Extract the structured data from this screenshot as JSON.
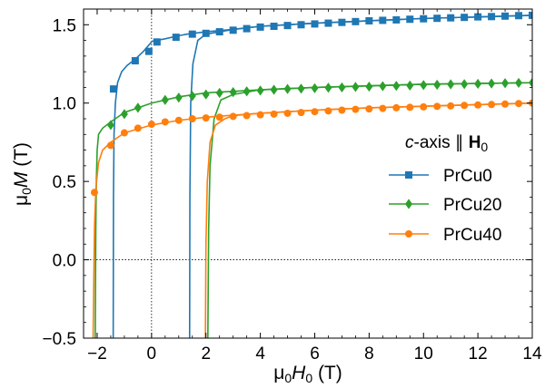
{
  "chart_data": {
    "type": "line",
    "xlabel_var": "H",
    "xlabel_sub": "0",
    "xlabel_unit": " (T)",
    "ylabel_var": "M",
    "ylabel_unit": "  (T)",
    "axis_prefix": "μ",
    "axis_prefix_sub": "0",
    "xlim": [
      -2.5,
      14
    ],
    "ylim": [
      -0.5,
      1.6
    ],
    "x_ticks": [
      -2,
      0,
      2,
      4,
      6,
      8,
      10,
      12,
      14
    ],
    "y_ticks": [
      -0.5,
      0.0,
      0.5,
      1.0,
      1.5
    ],
    "x_tick_labels": [
      "−2",
      "0",
      "2",
      "4",
      "6",
      "8",
      "10",
      "12",
      "14"
    ],
    "y_tick_labels": [
      "−0.5",
      "0.0",
      "0.5",
      "1.0",
      "1.5"
    ],
    "reference_lines": {
      "x": 0,
      "y": 0,
      "style": "dotted"
    },
    "grid": false,
    "legend_position": "right-middle",
    "legend": {
      "title_italic": "c",
      "title_text": "-axis  ∥ ",
      "title_bold": "H",
      "title_sub": "0"
    },
    "series": [
      {
        "name": "PrCu0",
        "color": "#1f77b4",
        "marker": "square",
        "descending": [
          [
            14,
            1.56
          ],
          [
            12,
            1.55
          ],
          [
            10,
            1.54
          ],
          [
            8,
            1.525
          ],
          [
            6,
            1.51
          ],
          [
            4,
            1.49
          ],
          [
            3,
            1.47
          ],
          [
            2,
            1.455
          ],
          [
            1.3,
            1.44
          ],
          [
            1,
            1.43
          ],
          [
            0.5,
            1.41
          ],
          [
            0.02,
            1.395
          ],
          [
            -0.1,
            1.37
          ],
          [
            -0.3,
            1.33
          ],
          [
            -0.6,
            1.28
          ],
          [
            -0.9,
            1.24
          ],
          [
            -1.1,
            1.2
          ],
          [
            -1.25,
            1.13
          ],
          [
            -1.33,
            1.0
          ],
          [
            -1.38,
            0.8
          ],
          [
            -1.4,
            0.4
          ],
          [
            -1.41,
            -0.5
          ]
        ],
        "ascending": [
          [
            1.4,
            -0.5
          ],
          [
            1.41,
            0.4
          ],
          [
            1.44,
            1.0
          ],
          [
            1.52,
            1.25
          ],
          [
            1.7,
            1.4
          ],
          [
            2,
            1.44
          ],
          [
            2.5,
            1.455
          ],
          [
            3,
            1.47
          ],
          [
            4,
            1.49
          ],
          [
            6,
            1.51
          ],
          [
            8,
            1.525
          ],
          [
            10,
            1.54
          ],
          [
            12,
            1.55
          ],
          [
            14,
            1.56
          ]
        ],
        "marker_points": [
          [
            -1.4,
            1.09
          ],
          [
            -0.6,
            1.27
          ],
          [
            -0.1,
            1.33
          ],
          [
            0.2,
            1.39
          ],
          [
            0.9,
            1.42
          ],
          [
            1.5,
            1.44
          ],
          [
            2.0,
            1.445
          ],
          [
            2.5,
            1.455
          ],
          [
            3.0,
            1.465
          ],
          [
            3.5,
            1.475
          ],
          [
            4.0,
            1.485
          ],
          [
            4.5,
            1.49
          ],
          [
            5.0,
            1.495
          ],
          [
            5.5,
            1.5
          ],
          [
            6.0,
            1.505
          ],
          [
            6.5,
            1.51
          ],
          [
            7.0,
            1.515
          ],
          [
            7.5,
            1.52
          ],
          [
            8.0,
            1.525
          ],
          [
            8.5,
            1.528
          ],
          [
            9.0,
            1.531
          ],
          [
            9.5,
            1.535
          ],
          [
            10.0,
            1.538
          ],
          [
            10.5,
            1.541
          ],
          [
            11.0,
            1.544
          ],
          [
            11.5,
            1.547
          ],
          [
            12.0,
            1.55
          ],
          [
            12.5,
            1.552
          ],
          [
            13.0,
            1.555
          ],
          [
            13.5,
            1.558
          ],
          [
            14.0,
            1.56
          ]
        ]
      },
      {
        "name": "PrCu20",
        "color": "#2ca02c",
        "marker": "diamond",
        "descending": [
          [
            14,
            1.13
          ],
          [
            12,
            1.125
          ],
          [
            10,
            1.12
          ],
          [
            8,
            1.11
          ],
          [
            6,
            1.1
          ],
          [
            4,
            1.085
          ],
          [
            2,
            1.065
          ],
          [
            1,
            1.04
          ],
          [
            0,
            1.0
          ],
          [
            -1,
            0.94
          ],
          [
            -1.5,
            0.88
          ],
          [
            -1.8,
            0.84
          ],
          [
            -1.95,
            0.8
          ],
          [
            -2.0,
            0.7
          ],
          [
            -2.03,
            0.5
          ],
          [
            -2.05,
            0.2
          ],
          [
            -2.07,
            -0.5
          ]
        ],
        "ascending": [
          [
            2.07,
            -0.5
          ],
          [
            2.1,
            0.2
          ],
          [
            2.15,
            0.6
          ],
          [
            2.3,
            0.9
          ],
          [
            2.55,
            1.02
          ],
          [
            3,
            1.055
          ],
          [
            4,
            1.085
          ],
          [
            6,
            1.1
          ],
          [
            8,
            1.11
          ],
          [
            10,
            1.12
          ],
          [
            12,
            1.125
          ],
          [
            14,
            1.13
          ]
        ],
        "marker_points": [
          [
            -1.5,
            0.86
          ],
          [
            -1.0,
            0.93
          ],
          [
            -0.5,
            0.97
          ],
          [
            0.5,
            1.02
          ],
          [
            1.0,
            1.035
          ],
          [
            1.5,
            1.045
          ],
          [
            2.0,
            1.055
          ],
          [
            2.5,
            1.065
          ],
          [
            3.0,
            1.07
          ],
          [
            3.5,
            1.075
          ],
          [
            4.0,
            1.08
          ],
          [
            4.5,
            1.085
          ],
          [
            5.0,
            1.09
          ],
          [
            5.5,
            1.092
          ],
          [
            6.0,
            1.095
          ],
          [
            6.5,
            1.098
          ],
          [
            7.0,
            1.1
          ],
          [
            7.5,
            1.103
          ],
          [
            8.0,
            1.105
          ],
          [
            8.5,
            1.108
          ],
          [
            9.0,
            1.11
          ],
          [
            9.5,
            1.112
          ],
          [
            10.0,
            1.115
          ],
          [
            10.5,
            1.117
          ],
          [
            11.0,
            1.12
          ],
          [
            11.5,
            1.121
          ],
          [
            12.0,
            1.123
          ],
          [
            12.5,
            1.125
          ],
          [
            13.0,
            1.127
          ],
          [
            13.5,
            1.129
          ],
          [
            14.0,
            1.13
          ]
        ]
      },
      {
        "name": "PrCu40",
        "color": "#ff7f0e",
        "marker": "circle",
        "descending": [
          [
            14,
            1.0
          ],
          [
            12,
            0.99
          ],
          [
            10,
            0.98
          ],
          [
            8,
            0.97
          ],
          [
            6,
            0.955
          ],
          [
            4,
            0.935
          ],
          [
            2,
            0.91
          ],
          [
            1,
            0.89
          ],
          [
            0,
            0.86
          ],
          [
            -1,
            0.81
          ],
          [
            -1.5,
            0.75
          ],
          [
            -1.8,
            0.7
          ],
          [
            -1.95,
            0.62
          ],
          [
            -2.05,
            0.45
          ],
          [
            -2.1,
            0.2
          ],
          [
            -2.15,
            -0.5
          ]
        ],
        "ascending": [
          [
            1.98,
            -0.5
          ],
          [
            2.0,
            0.1
          ],
          [
            2.05,
            0.5
          ],
          [
            2.15,
            0.75
          ],
          [
            2.35,
            0.86
          ],
          [
            2.7,
            0.9
          ],
          [
            3,
            0.92
          ],
          [
            4,
            0.935
          ],
          [
            6,
            0.955
          ],
          [
            8,
            0.97
          ],
          [
            10,
            0.98
          ],
          [
            12,
            0.99
          ],
          [
            14,
            1.0
          ]
        ],
        "marker_points": [
          [
            -2.1,
            0.43
          ],
          [
            -1.5,
            0.73
          ],
          [
            -1.0,
            0.81
          ],
          [
            -0.5,
            0.84
          ],
          [
            0.0,
            0.865
          ],
          [
            0.5,
            0.88
          ],
          [
            1.0,
            0.89
          ],
          [
            1.5,
            0.9
          ],
          [
            2.0,
            0.905
          ],
          [
            2.5,
            0.91
          ],
          [
            3.0,
            0.915
          ],
          [
            3.5,
            0.92
          ],
          [
            4.0,
            0.925
          ],
          [
            4.5,
            0.93
          ],
          [
            5.0,
            0.935
          ],
          [
            5.5,
            0.94
          ],
          [
            6.0,
            0.945
          ],
          [
            6.5,
            0.95
          ],
          [
            7.0,
            0.955
          ],
          [
            7.5,
            0.96
          ],
          [
            8.0,
            0.963
          ],
          [
            8.5,
            0.966
          ],
          [
            9.0,
            0.97
          ],
          [
            9.5,
            0.973
          ],
          [
            10.0,
            0.976
          ],
          [
            10.5,
            0.979
          ],
          [
            11.0,
            0.982
          ],
          [
            11.5,
            0.985
          ],
          [
            12.0,
            0.988
          ],
          [
            12.5,
            0.991
          ],
          [
            13.0,
            0.994
          ],
          [
            13.5,
            0.997
          ],
          [
            14.0,
            1.0
          ]
        ]
      }
    ]
  }
}
